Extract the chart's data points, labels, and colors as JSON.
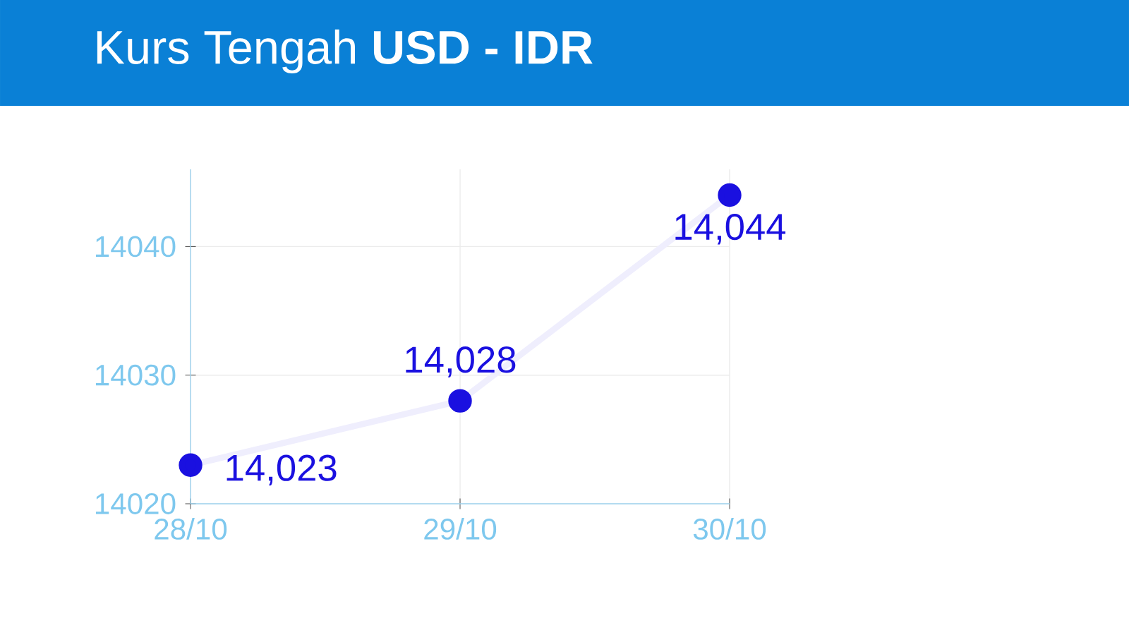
{
  "chart_data": {
    "type": "line",
    "title": "Kurs Tengah **USD - IDR**",
    "categories": [
      "28/10",
      "29/10",
      "30/10"
    ],
    "series": [
      {
        "color": "#1a10e0",
        "values": [
          14023,
          14028,
          14044
        ],
        "value_labels": [
          "14,023",
          "14,028",
          "14,044"
        ]
      }
    ],
    "ylim": [
      14020,
      14046
    ],
    "yticks": [
      14020,
      14030,
      14040
    ],
    "grid": true,
    "marker": "circle",
    "line_style": "solid"
  }
}
